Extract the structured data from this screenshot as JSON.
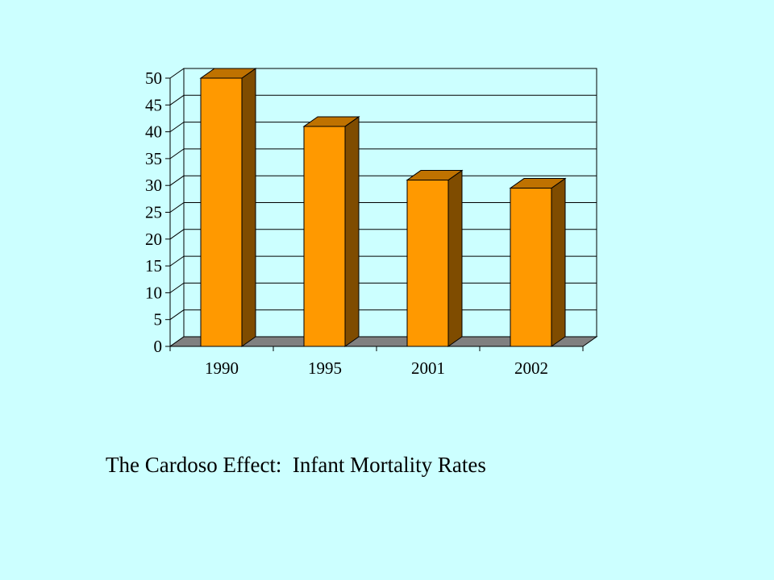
{
  "caption": "The Cardoso Effect:  Infant Mortality Rates",
  "chart_data": {
    "type": "bar",
    "style": "3d-column",
    "categories": [
      "1990",
      "1995",
      "2001",
      "2002"
    ],
    "values": [
      50,
      41,
      31,
      29.5
    ],
    "ylim": [
      0,
      50
    ],
    "yticks": [
      0,
      5,
      10,
      15,
      20,
      25,
      30,
      35,
      40,
      45,
      50
    ],
    "grid": true,
    "legend": "none",
    "colors": {
      "bar_front": "#ff9900",
      "bar_side": "#7f4c00",
      "bar_top": "#bf7200",
      "floor": "#808080",
      "wall": "#ccffff",
      "background": "#ccffff"
    }
  }
}
